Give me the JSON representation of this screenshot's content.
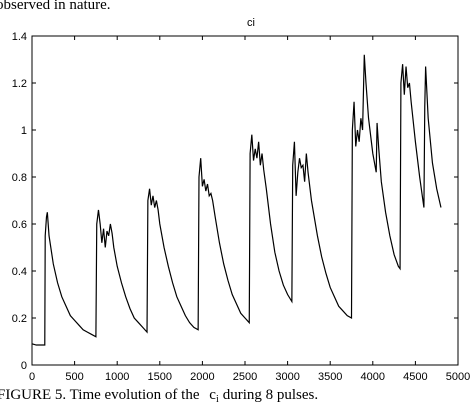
{
  "text_above": "observed in nature.",
  "caption": {
    "lead": "FIGURE 5. Time evolution of the",
    "symbol": "c",
    "subscript": "i",
    "tail": "during 8 pulses."
  },
  "chart_data": {
    "type": "line",
    "title": "ci",
    "color": "#000000",
    "grid": false,
    "xlim": [
      0,
      5000
    ],
    "xticks": [
      0,
      500,
      1000,
      1500,
      2000,
      2500,
      3000,
      3500,
      4000,
      4500,
      5000
    ],
    "ylim": [
      0,
      1.4
    ],
    "yticks": [
      0,
      0.2,
      0.4,
      0.6,
      0.8,
      1,
      1.2,
      1.4
    ],
    "x": [
      0,
      50,
      100,
      150,
      155,
      170,
      180,
      200,
      250,
      300,
      350,
      400,
      450,
      500,
      550,
      600,
      650,
      700,
      750,
      760,
      780,
      800,
      820,
      840,
      860,
      880,
      900,
      920,
      940,
      960,
      1000,
      1050,
      1100,
      1150,
      1200,
      1250,
      1300,
      1350,
      1360,
      1380,
      1400,
      1420,
      1440,
      1460,
      1480,
      1500,
      1550,
      1600,
      1650,
      1700,
      1750,
      1800,
      1850,
      1900,
      1950,
      1960,
      1980,
      2000,
      2020,
      2040,
      2060,
      2080,
      2100,
      2120,
      2150,
      2200,
      2250,
      2300,
      2350,
      2400,
      2450,
      2500,
      2550,
      2560,
      2580,
      2600,
      2620,
      2640,
      2660,
      2680,
      2700,
      2720,
      2750,
      2800,
      2850,
      2900,
      2950,
      3000,
      3050,
      3060,
      3080,
      3100,
      3120,
      3140,
      3160,
      3180,
      3200,
      3220,
      3240,
      3280,
      3350,
      3400,
      3450,
      3500,
      3550,
      3600,
      3650,
      3700,
      3750,
      3760,
      3780,
      3800,
      3820,
      3840,
      3860,
      3880,
      3900,
      3920,
      3950,
      4000,
      4040,
      4050,
      4070,
      4100,
      4150,
      4200,
      4250,
      4300,
      4320,
      4330,
      4350,
      4370,
      4390,
      4410,
      4430,
      4450,
      4500,
      4550,
      4600,
      4610,
      4620,
      4650,
      4700,
      4750,
      4800
    ],
    "values": [
      0.09,
      0.085,
      0.085,
      0.085,
      0.55,
      0.63,
      0.65,
      0.55,
      0.43,
      0.35,
      0.29,
      0.25,
      0.21,
      0.19,
      0.17,
      0.15,
      0.14,
      0.13,
      0.12,
      0.6,
      0.66,
      0.6,
      0.52,
      0.58,
      0.5,
      0.57,
      0.55,
      0.6,
      0.56,
      0.5,
      0.42,
      0.35,
      0.29,
      0.24,
      0.2,
      0.18,
      0.16,
      0.14,
      0.7,
      0.75,
      0.68,
      0.72,
      0.67,
      0.7,
      0.66,
      0.6,
      0.5,
      0.42,
      0.35,
      0.29,
      0.25,
      0.21,
      0.18,
      0.16,
      0.15,
      0.8,
      0.88,
      0.76,
      0.79,
      0.74,
      0.77,
      0.72,
      0.73,
      0.7,
      0.63,
      0.52,
      0.43,
      0.36,
      0.3,
      0.26,
      0.22,
      0.2,
      0.18,
      0.9,
      0.98,
      0.87,
      0.92,
      0.88,
      0.95,
      0.85,
      0.9,
      0.83,
      0.75,
      0.6,
      0.48,
      0.4,
      0.34,
      0.3,
      0.27,
      0.85,
      0.95,
      0.72,
      0.82,
      0.88,
      0.84,
      0.85,
      0.78,
      0.9,
      0.82,
      0.7,
      0.55,
      0.46,
      0.39,
      0.33,
      0.29,
      0.25,
      0.23,
      0.21,
      0.2,
      1.0,
      1.12,
      0.93,
      1.0,
      0.95,
      1.05,
      1.0,
      1.32,
      1.2,
      1.05,
      0.9,
      0.82,
      1.03,
      0.92,
      0.78,
      0.65,
      0.55,
      0.47,
      0.42,
      0.41,
      1.2,
      1.28,
      1.15,
      1.27,
      1.18,
      1.2,
      1.12,
      0.95,
      0.8,
      0.67,
      1.1,
      1.27,
      1.05,
      0.86,
      0.75,
      0.67
    ]
  }
}
